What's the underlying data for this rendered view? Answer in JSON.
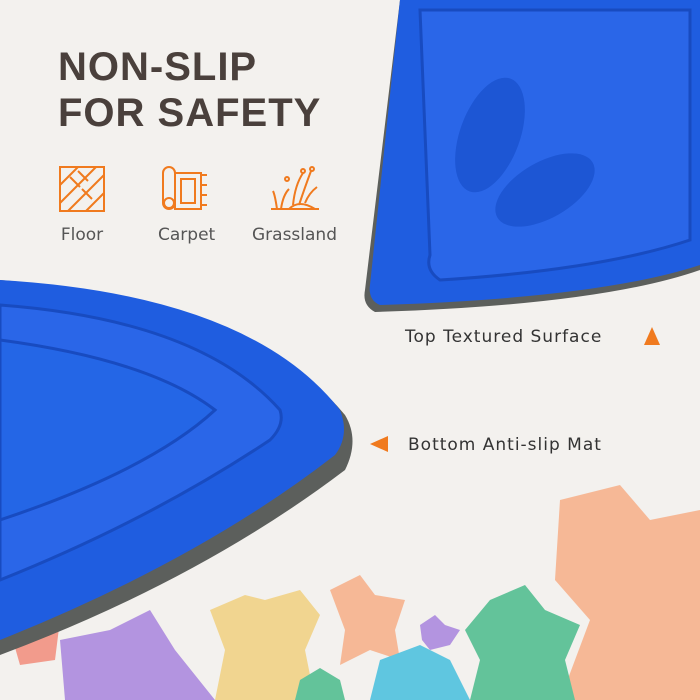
{
  "headline": {
    "line1": "NON-SLIP",
    "line2": "FOR SAFETY"
  },
  "surfaces": [
    {
      "label": "Floor",
      "icon": "floor-tiles-icon"
    },
    {
      "label": "Carpet",
      "icon": "carpet-roll-icon"
    },
    {
      "label": "Grassland",
      "icon": "grass-icon"
    }
  ],
  "callouts": {
    "top": "Top Textured Surface",
    "bottom": "Bottom Anti-slip Mat"
  },
  "colors": {
    "accent": "#f07a1e",
    "product_blue": "#1f5de0",
    "mat_grey": "#5c5f5c",
    "text": "#4a403c"
  }
}
